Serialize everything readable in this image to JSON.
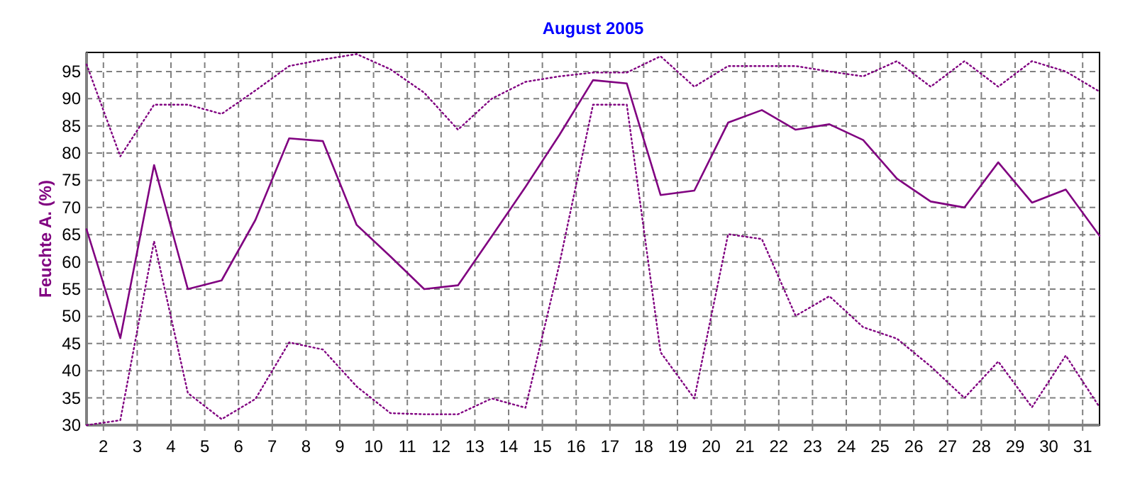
{
  "chart_data": {
    "type": "line",
    "title": "August 2005",
    "ylabel": "Feuchte A. (%)",
    "x": [
      1.5,
      2.5,
      3.5,
      4.5,
      5.5,
      6.5,
      7.5,
      8.5,
      9.5,
      10.5,
      11.5,
      12.5,
      13.5,
      14.5,
      15.5,
      16.5,
      17.5,
      18.5,
      19.5,
      20.5,
      21.5,
      22.5,
      23.5,
      24.5,
      25.5,
      26.5,
      27.5,
      28.5,
      29.5,
      30.5,
      31.5
    ],
    "series": [
      {
        "color": "#800080",
        "line_style": "dotted",
        "values": [
          96.3,
          79.4,
          88.9,
          88.9,
          87.2,
          91.5,
          96,
          97.2,
          98.2,
          95.4,
          91.1,
          84.3,
          90,
          93.1,
          94.1,
          94.8,
          94.8,
          97.8,
          92.2,
          96,
          96,
          96,
          95,
          94.1,
          96.9,
          92.2,
          96.9,
          92.2,
          96.9,
          95,
          91.3
        ]
      },
      {
        "color": "#800080",
        "line_style": "solid",
        "values": [
          66,
          46,
          77.8,
          55,
          56.6,
          67.7,
          82.7,
          82.2,
          66.8,
          61,
          55,
          55.7,
          64.7,
          73.8,
          83.3,
          93.4,
          92.8,
          72.3,
          73.1,
          85.6,
          87.9,
          84.3,
          85.3,
          82.4,
          75.3,
          71.1,
          70,
          78.3,
          70.9,
          73.3,
          64.8
        ]
      },
      {
        "color": "#800080",
        "line_style": "dotted",
        "values": [
          30,
          30.9,
          63.8,
          35.9,
          31.1,
          34.8,
          45.2,
          43.9,
          37.1,
          32.2,
          32,
          32,
          34.9,
          33.2,
          59.5,
          88.9,
          88.9,
          43.4,
          34.9,
          65.1,
          64.2,
          50.1,
          53.7,
          48,
          45.9,
          40.8,
          35,
          41.7,
          33.3,
          42.8,
          33.3
        ]
      }
    ],
    "xlim": [
      1.5,
      31.5
    ],
    "xticks": [
      2,
      3,
      4,
      5,
      6,
      7,
      8,
      9,
      10,
      11,
      12,
      13,
      14,
      15,
      16,
      17,
      18,
      19,
      20,
      21,
      22,
      23,
      24,
      25,
      26,
      27,
      28,
      29,
      30,
      31
    ],
    "ylim": [
      30,
      98.5
    ],
    "yticks": [
      30,
      35,
      40,
      45,
      50,
      55,
      60,
      65,
      70,
      75,
      80,
      85,
      90,
      95
    ],
    "grid": true,
    "marker": "none"
  }
}
